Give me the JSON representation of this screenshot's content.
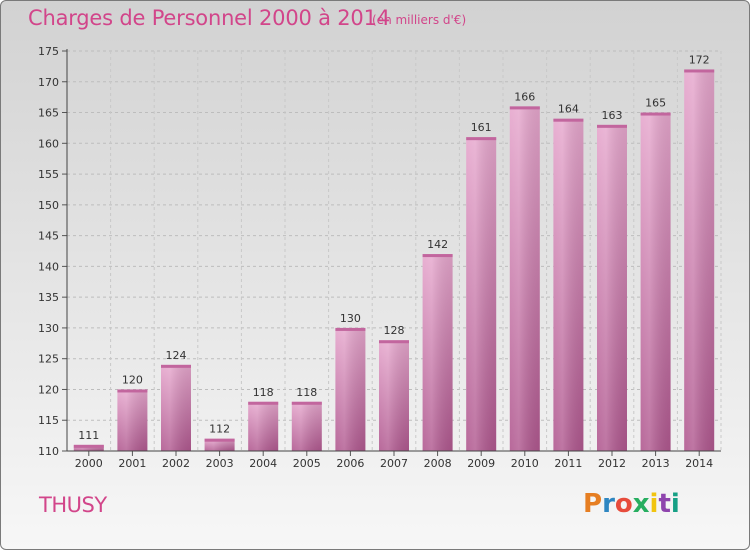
{
  "header": {
    "title": "Charges de Personnel 2000 à 2014",
    "subtitle": "(en milliers d'€)"
  },
  "footer": {
    "town": "THUSY",
    "logo": "Proxiti",
    "logo_colors": [
      "#e67e22",
      "#2e86c1",
      "#e74c3c",
      "#27ae60",
      "#f1c40f",
      "#8e44ad",
      "#16a085"
    ]
  },
  "chart_data": {
    "type": "bar",
    "categories": [
      "2000",
      "2001",
      "2002",
      "2003",
      "2004",
      "2005",
      "2006",
      "2007",
      "2008",
      "2009",
      "2010",
      "2011",
      "2012",
      "2013",
      "2014"
    ],
    "values": [
      111,
      120,
      124,
      112,
      118,
      118,
      130,
      128,
      142,
      161,
      166,
      164,
      163,
      165,
      172
    ],
    "ylim": [
      110,
      175
    ],
    "yticks": [
      110,
      115,
      120,
      125,
      130,
      135,
      140,
      145,
      150,
      155,
      160,
      165,
      170,
      175
    ],
    "grid": true,
    "bar_color": "#d670a8"
  }
}
